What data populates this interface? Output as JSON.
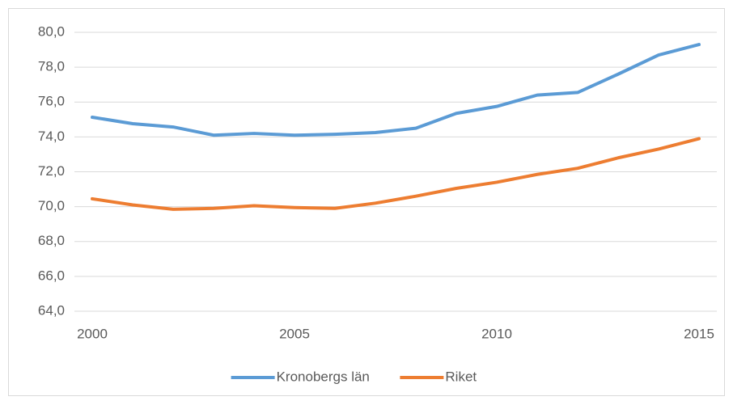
{
  "chart_data": {
    "type": "line",
    "x": [
      2000,
      2001,
      2002,
      2003,
      2004,
      2005,
      2006,
      2007,
      2008,
      2009,
      2010,
      2011,
      2012,
      2013,
      2014,
      2015
    ],
    "series": [
      {
        "name": "Kronobergs län",
        "color": "#5b9bd5",
        "values": [
          75.13,
          74.76,
          74.57,
          74.1,
          74.2,
          74.1,
          74.15,
          74.25,
          74.5,
          75.35,
          75.75,
          76.4,
          76.55,
          77.6,
          78.7,
          79.3
        ]
      },
      {
        "name": "Riket",
        "color": "#ed7d31",
        "values": [
          70.45,
          70.1,
          69.85,
          69.9,
          70.05,
          69.95,
          69.9,
          70.2,
          70.6,
          71.05,
          71.4,
          71.85,
          72.2,
          72.8,
          73.3,
          73.9
        ]
      }
    ],
    "xlim": [
      1999.56,
      2015.44
    ],
    "xticks": [
      2000,
      2005,
      2010,
      2015
    ],
    "ylim": [
      64,
      80
    ],
    "yticks": [
      {
        "value": 64,
        "label": "64,0"
      },
      {
        "value": 66,
        "label": "66,0"
      },
      {
        "value": 68,
        "label": "68,0"
      },
      {
        "value": 70,
        "label": "70,0"
      },
      {
        "value": 72,
        "label": "72,0"
      },
      {
        "value": 74,
        "label": "74,0"
      },
      {
        "value": 76,
        "label": "76,0"
      },
      {
        "value": 78,
        "label": "78,0"
      },
      {
        "value": 80,
        "label": "80,0"
      }
    ],
    "grid": true,
    "legend": "bottom"
  }
}
